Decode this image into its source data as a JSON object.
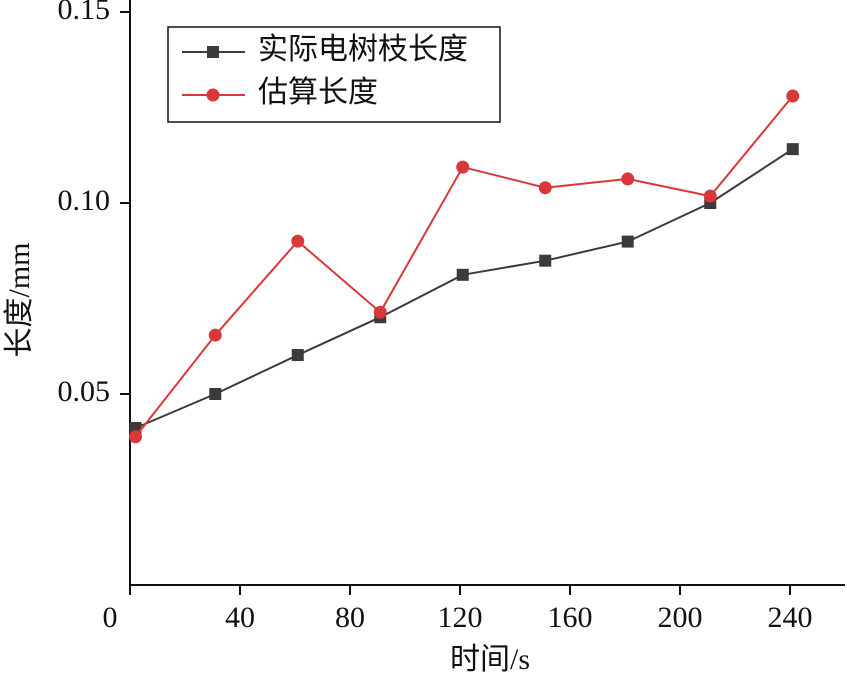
{
  "chart_data": {
    "type": "line",
    "x_label": "时间/s",
    "y_label": "长度/mm",
    "xlim": [
      0,
      260
    ],
    "xticks": [
      0,
      40,
      80,
      120,
      160,
      200,
      240
    ],
    "ylim": [
      0,
      0.15
    ],
    "yticks": [
      0.05,
      {
        "value": 0.1,
        "label": "0.10"
      },
      0.15
    ],
    "legend": "upper left",
    "series": [
      {
        "name": "实际电树枝长度",
        "color": "#3d3a39",
        "marker": "square",
        "x": [
          2,
          31,
          61,
          91,
          121,
          151,
          181,
          211,
          241
        ],
        "values": [
          0.0411,
          0.05,
          0.0602,
          0.0701,
          0.0812,
          0.0849,
          0.0899,
          0.1,
          0.1141
        ]
      },
      {
        "name": "估算长度",
        "color": "#d9383a",
        "marker": "circle",
        "x": [
          2,
          31,
          61,
          91,
          121,
          151,
          181,
          211,
          241
        ],
        "values": [
          0.0388,
          0.0654,
          0.09,
          0.0714,
          0.1094,
          0.104,
          0.1063,
          0.1018,
          0.128
        ]
      }
    ]
  }
}
